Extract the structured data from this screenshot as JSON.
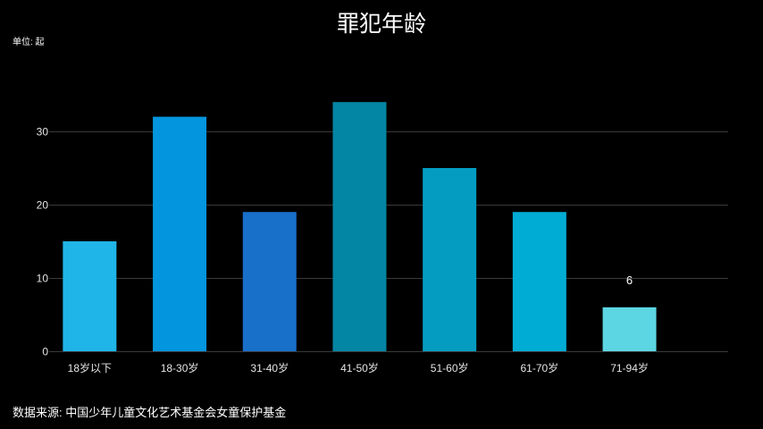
{
  "chart_data": {
    "type": "bar",
    "title": "罪犯年龄",
    "unit_label": "单位: 起",
    "categories": [
      "18岁以下",
      "18-30岁",
      "31-40岁",
      "41-50岁",
      "51-60岁",
      "61-70岁",
      "71-94岁"
    ],
    "values": [
      15,
      32,
      19,
      34,
      25,
      19,
      6
    ],
    "data_labels": [
      "",
      "",
      "",
      "",
      "",
      "",
      "6"
    ],
    "bar_colors": [
      "#20b5e8",
      "#0395dd",
      "#1970c9",
      "#0286a4",
      "#049dc1",
      "#00acd3",
      "#5cd6e2"
    ],
    "yticks": [
      0,
      10,
      20,
      30
    ],
    "ylim": [
      0,
      35
    ],
    "grid": true,
    "legend": "none"
  },
  "source": "数据来源: 中国少年儿童文化艺术基金会女童保护基金",
  "colors": {
    "background": "#000000",
    "text": "#ffffff",
    "tick_text": "#e6e6e6",
    "grid": "#3a3a3a"
  }
}
